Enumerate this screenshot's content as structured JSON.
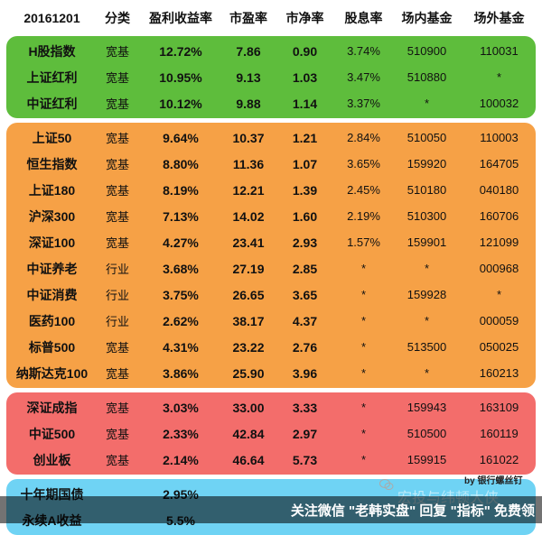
{
  "header": {
    "date": "20161201",
    "columns": [
      "分类",
      "盈利收益率",
      "市盈率",
      "市净率",
      "股息率",
      "场内基金",
      "场外基金"
    ]
  },
  "colors": {
    "green": "#5ebd3c",
    "orange": "#f6a146",
    "red": "#f36d6b",
    "blue": "#6fd3f4"
  },
  "groups": [
    {
      "color": "green",
      "rows": [
        [
          "H股指数",
          "宽基",
          "12.72%",
          "7.86",
          "0.90",
          "3.74%",
          "510900",
          "110031"
        ],
        [
          "上证红利",
          "宽基",
          "10.95%",
          "9.13",
          "1.03",
          "3.47%",
          "510880",
          "*"
        ],
        [
          "中证红利",
          "宽基",
          "10.12%",
          "9.88",
          "1.14",
          "3.37%",
          "*",
          "100032"
        ]
      ]
    },
    {
      "color": "orange",
      "rows": [
        [
          "上证50",
          "宽基",
          "9.64%",
          "10.37",
          "1.21",
          "2.84%",
          "510050",
          "110003"
        ],
        [
          "恒生指数",
          "宽基",
          "8.80%",
          "11.36",
          "1.07",
          "3.65%",
          "159920",
          "164705"
        ],
        [
          "上证180",
          "宽基",
          "8.19%",
          "12.21",
          "1.39",
          "2.45%",
          "510180",
          "040180"
        ],
        [
          "沪深300",
          "宽基",
          "7.13%",
          "14.02",
          "1.60",
          "2.19%",
          "510300",
          "160706"
        ],
        [
          "深证100",
          "宽基",
          "4.27%",
          "23.41",
          "2.93",
          "1.57%",
          "159901",
          "121099"
        ],
        [
          "中证养老",
          "行业",
          "3.68%",
          "27.19",
          "2.85",
          "*",
          "*",
          "000968"
        ],
        [
          "中证消费",
          "行业",
          "3.75%",
          "26.65",
          "3.65",
          "*",
          "159928",
          "*"
        ],
        [
          "医药100",
          "行业",
          "2.62%",
          "38.17",
          "4.37",
          "*",
          "*",
          "000059"
        ],
        [
          "标普500",
          "宽基",
          "4.31%",
          "23.22",
          "2.76",
          "*",
          "513500",
          "050025"
        ],
        [
          "纳斯达克100",
          "宽基",
          "3.86%",
          "25.90",
          "3.96",
          "*",
          "*",
          "160213"
        ]
      ]
    },
    {
      "color": "red",
      "rows": [
        [
          "深证成指",
          "宽基",
          "3.03%",
          "33.00",
          "3.33",
          "*",
          "159943",
          "163109"
        ],
        [
          "中证500",
          "宽基",
          "2.33%",
          "42.84",
          "2.97",
          "*",
          "510500",
          "160119"
        ],
        [
          "创业板",
          "宽基",
          "2.14%",
          "46.64",
          "5.73",
          "*",
          "159915",
          "161022"
        ]
      ]
    },
    {
      "color": "blue",
      "rows": [
        [
          "十年期国债",
          "",
          "2.95%",
          "",
          "",
          "",
          "",
          ""
        ],
        [
          "永续A收益",
          "",
          "5.5%",
          "",
          "",
          "",
          "",
          ""
        ]
      ]
    }
  ],
  "credit": "by 银行螺丝钉",
  "watermark_faded": "宏投与纬顿大侠",
  "footer": "关注微信 \"老韩实盘\" 回复 \"指标\" 免费领"
}
